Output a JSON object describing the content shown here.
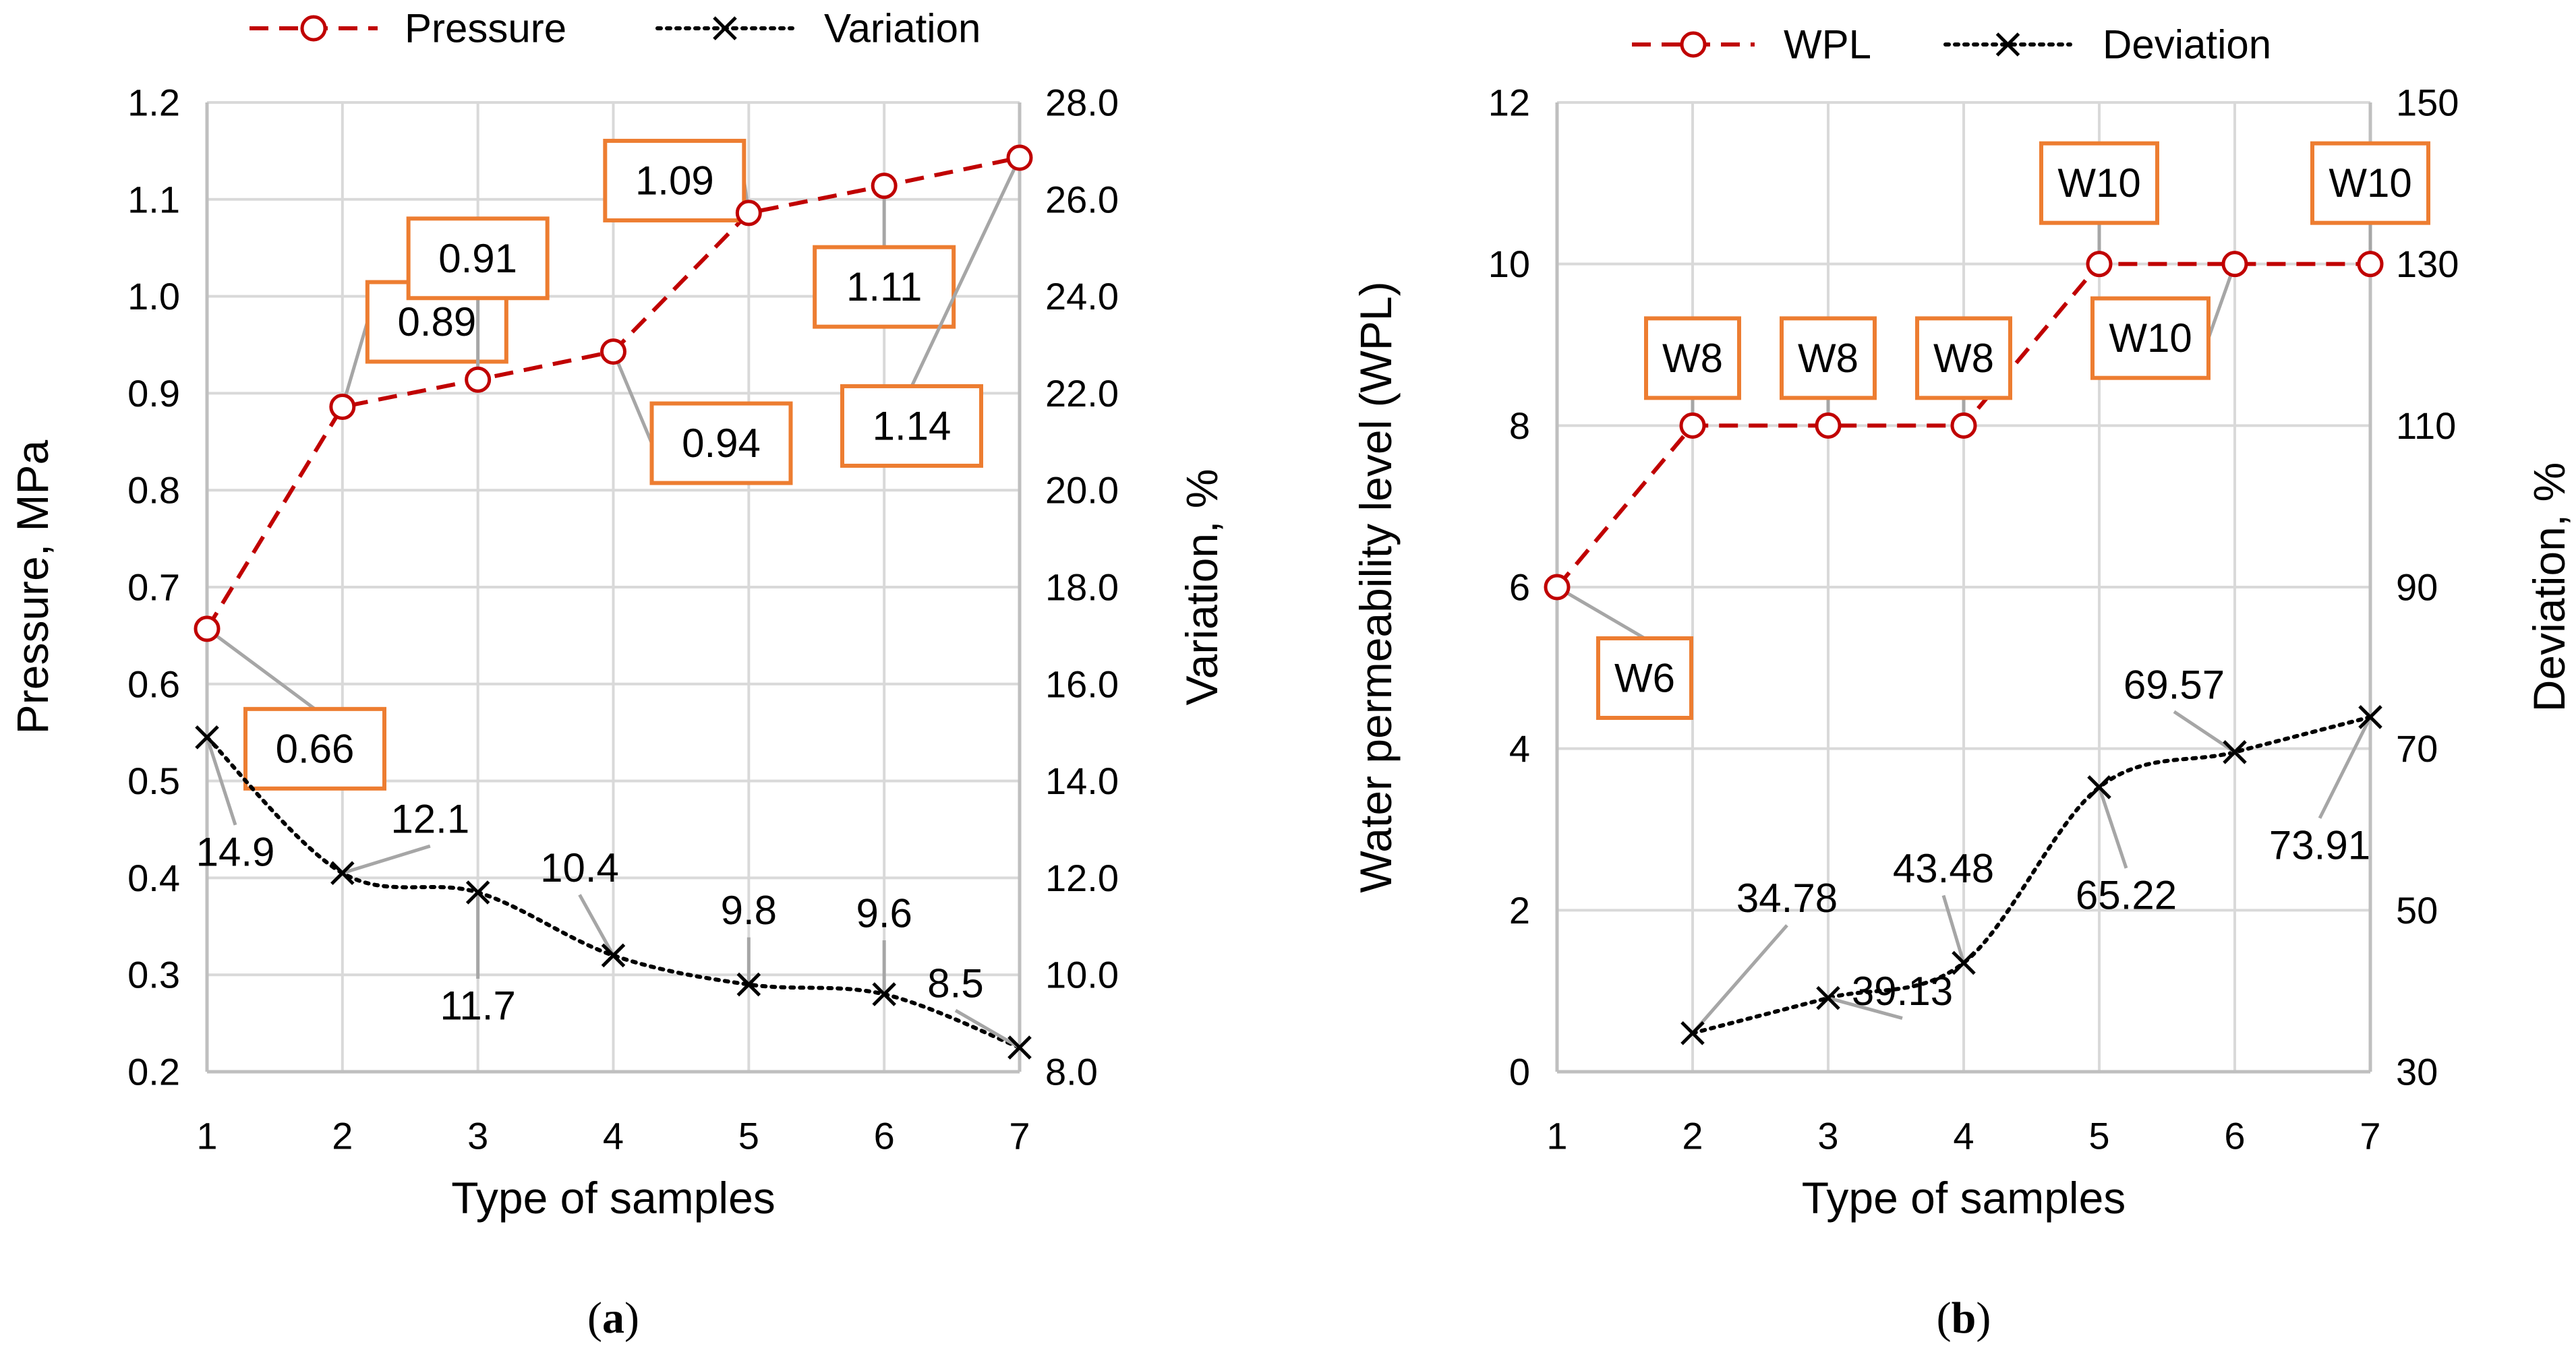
{
  "colors": {
    "pressure_line": "#c00000",
    "variation_line": "#000000",
    "callout_border": "#ed7d31",
    "leader": "#a6a6a6",
    "grid": "#d9d9d9",
    "axis": "#bfbfbf"
  },
  "chart_data": [
    {
      "type": "line",
      "panel_label": "(a)",
      "panel_letter": "a",
      "xlabel": "Type of samples",
      "ylabel_left": "Pressure, MPa",
      "ylabel_right": "Variation, %",
      "x": [
        1,
        2,
        3,
        4,
        5,
        6,
        7
      ],
      "x_ticks": [
        "1",
        "2",
        "3",
        "4",
        "5",
        "6",
        "7"
      ],
      "ylim_left": [
        0.2,
        1.2
      ],
      "y_ticks_left": [
        "0.2",
        "0.3",
        "0.4",
        "0.5",
        "0.6",
        "0.7",
        "0.8",
        "0.9",
        "1.0",
        "1.1",
        "1.2"
      ],
      "ylim_right": [
        8.0,
        28.0
      ],
      "y_ticks_right": [
        "8.0",
        "10.0",
        "12.0",
        "14.0",
        "16.0",
        "18.0",
        "20.0",
        "22.0",
        "24.0",
        "26.0",
        "28.0"
      ],
      "grid": true,
      "legend": {
        "position": "top",
        "entries": [
          "Pressure",
          "Variation"
        ]
      },
      "series": [
        {
          "name": "Pressure",
          "axis": "left",
          "style": "dashed",
          "marker": "circle",
          "values": [
            0.657,
            0.886,
            0.914,
            0.943,
            1.086,
            1.114,
            1.143
          ],
          "labels": [
            "0.66",
            "0.89",
            "0.91",
            "0.94",
            "1.09",
            "1.11",
            "1.14"
          ]
        },
        {
          "name": "Variation",
          "axis": "right",
          "style": "dotted",
          "marker": "x",
          "values": [
            14.9,
            12.1,
            11.7,
            10.4,
            9.8,
            9.6,
            8.5
          ],
          "labels": [
            "14.9",
            "12.1",
            "11.7",
            "10.4",
            "9.8",
            "9.6",
            "8.5"
          ]
        }
      ]
    },
    {
      "type": "line",
      "panel_label": "(b)",
      "panel_letter": "b",
      "xlabel": "Type of samples",
      "ylabel_left": "Water permeability level (WPL)",
      "ylabel_right": "Deviation, %",
      "x": [
        1,
        2,
        3,
        4,
        5,
        6,
        7
      ],
      "x_ticks": [
        "1",
        "2",
        "3",
        "4",
        "5",
        "6",
        "7"
      ],
      "ylim_left": [
        0,
        12
      ],
      "y_ticks_left": [
        "0",
        "2",
        "4",
        "6",
        "8",
        "10",
        "12"
      ],
      "ylim_right": [
        30,
        150
      ],
      "y_ticks_right": [
        "30",
        "50",
        "70",
        "90",
        "110",
        "130",
        "150"
      ],
      "grid": true,
      "legend": {
        "position": "top",
        "entries": [
          "WPL",
          "Deviation"
        ]
      },
      "series": [
        {
          "name": "WPL",
          "axis": "left",
          "style": "dashed",
          "marker": "circle",
          "values": [
            6,
            8,
            8,
            8,
            10,
            10,
            10
          ],
          "labels": [
            "W6",
            "W8",
            "W8",
            "W8",
            "W10",
            "W10",
            "W10"
          ]
        },
        {
          "name": "Deviation",
          "axis": "right",
          "style": "dotted",
          "marker": "x",
          "values": [
            null,
            34.78,
            39.13,
            43.48,
            65.22,
            69.57,
            73.91
          ],
          "labels": [
            null,
            "34.78",
            "39.13",
            "43.48",
            "65.22",
            "69.57",
            "73.91"
          ]
        }
      ]
    }
  ]
}
